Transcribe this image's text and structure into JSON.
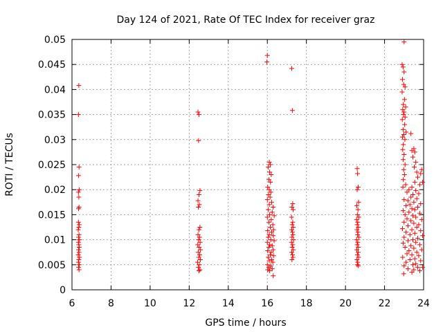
{
  "chart_data": {
    "type": "scatter",
    "title": "Day 124 of 2021, Rate Of TEC Index for receiver graz",
    "xlabel": "GPS time / hours",
    "ylabel": "ROTI / TECUs",
    "xlim": [
      6,
      24
    ],
    "ylim": [
      0,
      0.05
    ],
    "xticks": [
      6,
      8,
      10,
      12,
      14,
      16,
      18,
      20,
      22,
      24
    ],
    "yticks": [
      0,
      0.005,
      0.01,
      0.015,
      0.02,
      0.025,
      0.03,
      0.035,
      0.04,
      0.045,
      0.05
    ],
    "ytick_labels": [
      "0",
      "0.005",
      "0.01",
      "0.015",
      "0.02",
      "0.025",
      "0.03",
      "0.035",
      "0.04",
      "0.045",
      "0.05"
    ],
    "grid": true,
    "marker": "+",
    "color": "#ff0000",
    "series": [
      {
        "name": "ROTI",
        "points": [
          [
            6.35,
            0.0408
          ],
          [
            6.33,
            0.035
          ],
          [
            6.36,
            0.0245
          ],
          [
            6.34,
            0.0228
          ],
          [
            6.37,
            0.02
          ],
          [
            6.33,
            0.0195
          ],
          [
            6.35,
            0.0185
          ],
          [
            6.36,
            0.0165
          ],
          [
            6.34,
            0.0162
          ],
          [
            6.33,
            0.0135
          ],
          [
            6.37,
            0.013
          ],
          [
            6.35,
            0.0125
          ],
          [
            6.32,
            0.012
          ],
          [
            6.36,
            0.011
          ],
          [
            6.34,
            0.0105
          ],
          [
            6.38,
            0.01
          ],
          [
            6.33,
            0.0095
          ],
          [
            6.35,
            0.009
          ],
          [
            6.37,
            0.0085
          ],
          [
            6.34,
            0.008
          ],
          [
            6.36,
            0.0075
          ],
          [
            6.32,
            0.007
          ],
          [
            6.38,
            0.0065
          ],
          [
            6.35,
            0.006
          ],
          [
            6.33,
            0.0055
          ],
          [
            6.37,
            0.005
          ],
          [
            6.34,
            0.0045
          ],
          [
            6.36,
            0.004
          ],
          [
            12.45,
            0.0355
          ],
          [
            12.5,
            0.035
          ],
          [
            12.48,
            0.0298
          ],
          [
            12.55,
            0.0198
          ],
          [
            12.5,
            0.019
          ],
          [
            12.45,
            0.0178
          ],
          [
            12.52,
            0.017
          ],
          [
            12.47,
            0.0165
          ],
          [
            12.55,
            0.0125
          ],
          [
            12.5,
            0.012
          ],
          [
            12.45,
            0.011
          ],
          [
            12.53,
            0.0105
          ],
          [
            12.48,
            0.01
          ],
          [
            12.56,
            0.0095
          ],
          [
            12.44,
            0.009
          ],
          [
            12.51,
            0.0085
          ],
          [
            12.58,
            0.008
          ],
          [
            12.46,
            0.0075
          ],
          [
            12.54,
            0.007
          ],
          [
            12.49,
            0.0065
          ],
          [
            12.57,
            0.006
          ],
          [
            12.43,
            0.0055
          ],
          [
            12.52,
            0.005
          ],
          [
            12.47,
            0.0045
          ],
          [
            12.55,
            0.004
          ],
          [
            12.5,
            0.0038
          ],
          [
            16.0,
            0.0468
          ],
          [
            15.98,
            0.0455
          ],
          [
            16.1,
            0.0255
          ],
          [
            16.15,
            0.025
          ],
          [
            16.05,
            0.0245
          ],
          [
            16.12,
            0.0235
          ],
          [
            16.2,
            0.023
          ],
          [
            16.08,
            0.022
          ],
          [
            16.16,
            0.0215
          ],
          [
            16.02,
            0.0205
          ],
          [
            16.1,
            0.02
          ],
          [
            16.18,
            0.0195
          ],
          [
            16.06,
            0.019
          ],
          [
            16.14,
            0.0185
          ],
          [
            16.0,
            0.018
          ],
          [
            16.22,
            0.0175
          ],
          [
            16.1,
            0.017
          ],
          [
            16.3,
            0.0165
          ],
          [
            16.05,
            0.016
          ],
          [
            16.25,
            0.0155
          ],
          [
            16.12,
            0.015
          ],
          [
            16.35,
            0.0148
          ],
          [
            16.0,
            0.0145
          ],
          [
            16.2,
            0.014
          ],
          [
            16.08,
            0.0135
          ],
          [
            16.28,
            0.013
          ],
          [
            16.15,
            0.0125
          ],
          [
            16.32,
            0.012
          ],
          [
            16.02,
            0.0118
          ],
          [
            16.22,
            0.0115
          ],
          [
            16.1,
            0.011
          ],
          [
            16.3,
            0.0108
          ],
          [
            16.05,
            0.0105
          ],
          [
            16.18,
            0.01
          ],
          [
            16.35,
            0.0098
          ],
          [
            16.0,
            0.0095
          ],
          [
            16.12,
            0.009
          ],
          [
            16.25,
            0.0088
          ],
          [
            16.08,
            0.0085
          ],
          [
            16.3,
            0.008
          ],
          [
            16.02,
            0.0078
          ],
          [
            16.2,
            0.0075
          ],
          [
            16.15,
            0.007
          ],
          [
            16.32,
            0.0068
          ],
          [
            16.05,
            0.0065
          ],
          [
            16.22,
            0.006
          ],
          [
            16.1,
            0.0058
          ],
          [
            16.28,
            0.0055
          ],
          [
            16.0,
            0.005
          ],
          [
            16.18,
            0.0048
          ],
          [
            16.08,
            0.0045
          ],
          [
            16.25,
            0.0042
          ],
          [
            16.02,
            0.004
          ],
          [
            16.12,
            0.0038
          ],
          [
            16.3,
            0.0028
          ],
          [
            17.25,
            0.0442
          ],
          [
            17.28,
            0.0358
          ],
          [
            17.3,
            0.0172
          ],
          [
            17.26,
            0.0165
          ],
          [
            17.32,
            0.016
          ],
          [
            17.24,
            0.0145
          ],
          [
            17.3,
            0.0135
          ],
          [
            17.27,
            0.013
          ],
          [
            17.33,
            0.0125
          ],
          [
            17.25,
            0.012
          ],
          [
            17.29,
            0.0115
          ],
          [
            17.31,
            0.011
          ],
          [
            17.26,
            0.0105
          ],
          [
            17.34,
            0.01
          ],
          [
            17.24,
            0.0095
          ],
          [
            17.3,
            0.009
          ],
          [
            17.27,
            0.0085
          ],
          [
            17.33,
            0.008
          ],
          [
            17.25,
            0.0075
          ],
          [
            17.29,
            0.007
          ],
          [
            17.31,
            0.0065
          ],
          [
            17.26,
            0.006
          ],
          [
            20.6,
            0.0242
          ],
          [
            20.62,
            0.0232
          ],
          [
            20.65,
            0.0205
          ],
          [
            20.6,
            0.02
          ],
          [
            20.67,
            0.0175
          ],
          [
            20.58,
            0.0168
          ],
          [
            20.64,
            0.016
          ],
          [
            20.61,
            0.015
          ],
          [
            20.68,
            0.0145
          ],
          [
            20.57,
            0.014
          ],
          [
            20.63,
            0.0135
          ],
          [
            20.6,
            0.013
          ],
          [
            20.66,
            0.0125
          ],
          [
            20.59,
            0.012
          ],
          [
            20.64,
            0.0115
          ],
          [
            20.62,
            0.011
          ],
          [
            20.68,
            0.0105
          ],
          [
            20.57,
            0.01
          ],
          [
            20.63,
            0.0095
          ],
          [
            20.6,
            0.009
          ],
          [
            20.66,
            0.0085
          ],
          [
            20.58,
            0.008
          ],
          [
            20.65,
            0.0075
          ],
          [
            20.61,
            0.007
          ],
          [
            20.67,
            0.0065
          ],
          [
            20.59,
            0.006
          ],
          [
            20.63,
            0.0055
          ],
          [
            20.6,
            0.005
          ],
          [
            20.66,
            0.0048
          ],
          [
            23.0,
            0.0495
          ],
          [
            22.9,
            0.045
          ],
          [
            22.95,
            0.0445
          ],
          [
            23.0,
            0.0435
          ],
          [
            22.92,
            0.042
          ],
          [
            22.98,
            0.041
          ],
          [
            23.05,
            0.0405
          ],
          [
            22.9,
            0.0395
          ],
          [
            23.02,
            0.038
          ],
          [
            22.96,
            0.037
          ],
          [
            23.08,
            0.0365
          ],
          [
            22.93,
            0.036
          ],
          [
            23.0,
            0.0355
          ],
          [
            22.97,
            0.035
          ],
          [
            23.05,
            0.0345
          ],
          [
            22.91,
            0.034
          ],
          [
            23.03,
            0.033
          ],
          [
            22.95,
            0.032
          ],
          [
            23.1,
            0.0315
          ],
          [
            23.35,
            0.0312
          ],
          [
            22.99,
            0.031
          ],
          [
            22.92,
            0.0305
          ],
          [
            23.04,
            0.03
          ],
          [
            22.96,
            0.029
          ],
          [
            22.93,
            0.028
          ],
          [
            23.5,
            0.0282
          ],
          [
            23.4,
            0.0278
          ],
          [
            23.55,
            0.0275
          ],
          [
            23.0,
            0.027
          ],
          [
            23.45,
            0.0265
          ],
          [
            22.95,
            0.026
          ],
          [
            23.6,
            0.0255
          ],
          [
            23.05,
            0.025
          ],
          [
            23.52,
            0.0245
          ],
          [
            22.98,
            0.024
          ],
          [
            23.9,
            0.024
          ],
          [
            23.65,
            0.0235
          ],
          [
            23.02,
            0.023
          ],
          [
            23.85,
            0.0232
          ],
          [
            22.96,
            0.022
          ],
          [
            23.7,
            0.0225
          ],
          [
            23.55,
            0.0215
          ],
          [
            23.95,
            0.0215
          ],
          [
            23.08,
            0.021
          ],
          [
            23.4,
            0.0205
          ],
          [
            23.8,
            0.021
          ],
          [
            22.94,
            0.0205
          ],
          [
            23.25,
            0.02
          ],
          [
            23.6,
            0.0198
          ],
          [
            23.15,
            0.0195
          ],
          [
            23.45,
            0.019
          ],
          [
            23.75,
            0.0192
          ],
          [
            23.35,
            0.0185
          ],
          [
            23.0,
            0.018
          ],
          [
            23.65,
            0.0182
          ],
          [
            23.2,
            0.0178
          ],
          [
            23.5,
            0.0175
          ],
          [
            23.85,
            0.0172
          ],
          [
            23.3,
            0.017
          ],
          [
            23.1,
            0.0168
          ],
          [
            23.7,
            0.0165
          ],
          [
            23.4,
            0.0162
          ],
          [
            23.55,
            0.016
          ],
          [
            22.95,
            0.0158
          ],
          [
            23.25,
            0.0155
          ],
          [
            23.8,
            0.0153
          ],
          [
            23.05,
            0.015
          ],
          [
            23.45,
            0.0148
          ],
          [
            23.6,
            0.0145
          ],
          [
            23.15,
            0.0142
          ],
          [
            23.9,
            0.014
          ],
          [
            23.35,
            0.0138
          ],
          [
            23.0,
            0.0135
          ],
          [
            23.5,
            0.0133
          ],
          [
            23.75,
            0.013
          ],
          [
            23.2,
            0.0128
          ],
          [
            23.65,
            0.0125
          ],
          [
            22.92,
            0.0122
          ],
          [
            23.4,
            0.012
          ],
          [
            23.85,
            0.0118
          ],
          [
            23.1,
            0.0115
          ],
          [
            23.55,
            0.0113
          ],
          [
            23.3,
            0.011
          ],
          [
            23.95,
            0.0108
          ],
          [
            23.0,
            0.0105
          ],
          [
            23.7,
            0.0103
          ],
          [
            23.45,
            0.01
          ],
          [
            23.2,
            0.0098
          ],
          [
            23.6,
            0.0095
          ],
          [
            22.95,
            0.0093
          ],
          [
            23.8,
            0.009
          ],
          [
            23.35,
            0.0088
          ],
          [
            23.05,
            0.0085
          ],
          [
            23.5,
            0.0083
          ],
          [
            23.9,
            0.008
          ],
          [
            23.25,
            0.0078
          ],
          [
            23.65,
            0.0075
          ],
          [
            23.15,
            0.0072
          ],
          [
            23.4,
            0.007
          ],
          [
            23.75,
            0.0068
          ],
          [
            22.93,
            0.0065
          ],
          [
            23.55,
            0.0062
          ],
          [
            23.3,
            0.006
          ],
          [
            23.85,
            0.0058
          ],
          [
            23.1,
            0.0055
          ],
          [
            23.6,
            0.0052
          ],
          [
            23.45,
            0.005
          ],
          [
            23.0,
            0.0048
          ],
          [
            23.7,
            0.0045
          ],
          [
            23.2,
            0.0042
          ],
          [
            23.95,
            0.0045
          ],
          [
            23.5,
            0.004
          ],
          [
            22.98,
            0.0032
          ],
          [
            23.4,
            0.0035
          ],
          [
            23.8,
            0.0038
          ]
        ]
      }
    ]
  }
}
